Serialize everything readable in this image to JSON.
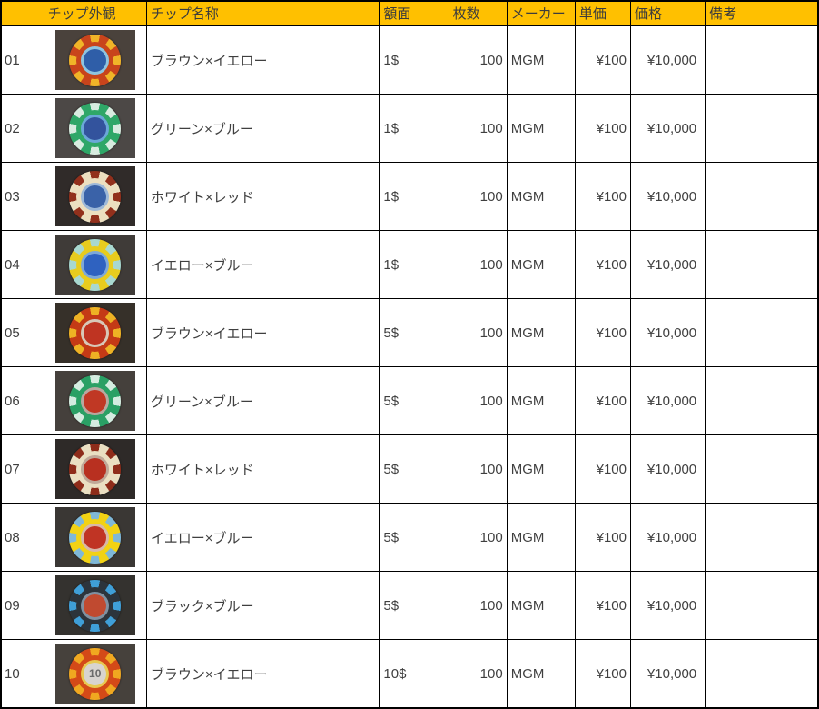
{
  "header": {
    "cells": [
      "",
      "チップ外観",
      "チップ名称",
      "額面",
      "枚数",
      "メーカー",
      "単価",
      "価格",
      "備考"
    ]
  },
  "rows": [
    {
      "no": "01",
      "name": "ブラウン×イエロー",
      "face_value": "1$",
      "quantity": "100",
      "maker": "MGM",
      "unit_price": "¥100",
      "price": "¥10,000",
      "note": "",
      "chip": {
        "ring": "#c8441c",
        "spot": "#f0b428",
        "center": "#2f5ea8",
        "cring": "#8ec4e0",
        "label": "",
        "photo_bg": "#4a423c"
      }
    },
    {
      "no": "02",
      "name": "グリーン×ブルー",
      "face_value": "1$",
      "quantity": "100",
      "maker": "MGM",
      "unit_price": "¥100",
      "price": "¥10,000",
      "note": "",
      "chip": {
        "ring": "#2fa768",
        "spot": "#d8ece0",
        "center": "#33539d",
        "cring": "#6aa7d8",
        "label": "",
        "photo_bg": "#4c4846"
      }
    },
    {
      "no": "03",
      "name": "ホワイト×レッド",
      "face_value": "1$",
      "quantity": "100",
      "maker": "MGM",
      "unit_price": "¥100",
      "price": "¥10,000",
      "note": "",
      "chip": {
        "ring": "#ecdfc0",
        "spot": "#92301c",
        "center": "#3a62a8",
        "cring": "#9db8d8",
        "label": "",
        "photo_bg": "#302b29"
      }
    },
    {
      "no": "04",
      "name": "イエロー×ブルー",
      "face_value": "1$",
      "quantity": "100",
      "maker": "MGM",
      "unit_price": "¥100",
      "price": "¥10,000",
      "note": "",
      "chip": {
        "ring": "#e8cc1e",
        "spot": "#a8d8d0",
        "center": "#2f62c0",
        "cring": "#7da8d8",
        "label": "",
        "photo_bg": "#3f3b38"
      }
    },
    {
      "no": "05",
      "name": "ブラウン×イエロー",
      "face_value": "5$",
      "quantity": "100",
      "maker": "MGM",
      "unit_price": "¥100",
      "price": "¥10,000",
      "note": "",
      "chip": {
        "ring": "#c43a16",
        "spot": "#eeb224",
        "center": "#bf3422",
        "cring": "#d8c8b8",
        "label": "",
        "photo_bg": "#363029"
      }
    },
    {
      "no": "06",
      "name": "グリーン×ブルー",
      "face_value": "5$",
      "quantity": "100",
      "maker": "MGM",
      "unit_price": "¥100",
      "price": "¥10,000",
      "note": "",
      "chip": {
        "ring": "#2aa065",
        "spot": "#d4ece0",
        "center": "#c03824",
        "cring": "#b8a8a0",
        "label": "",
        "photo_bg": "#45403c"
      }
    },
    {
      "no": "07",
      "name": "ホワイト×レッド",
      "face_value": "5$",
      "quantity": "100",
      "maker": "MGM",
      "unit_price": "¥100",
      "price": "¥10,000",
      "note": "",
      "chip": {
        "ring": "#eadfc2",
        "spot": "#8e2c1a",
        "center": "#b83020",
        "cring": "#c0a898",
        "label": "",
        "photo_bg": "#2e2a28"
      }
    },
    {
      "no": "08",
      "name": "イエロー×ブルー",
      "face_value": "5$",
      "quantity": "100",
      "maker": "MGM",
      "unit_price": "¥100",
      "price": "¥10,000",
      "note": "",
      "chip": {
        "ring": "#f2d214",
        "spot": "#7fb8d8",
        "center": "#c03424",
        "cring": "#d8b8a8",
        "label": "",
        "photo_bg": "#3a3734"
      }
    },
    {
      "no": "09",
      "name": "ブラック×ブルー",
      "face_value": "5$",
      "quantity": "100",
      "maker": "MGM",
      "unit_price": "¥100",
      "price": "¥10,000",
      "note": "",
      "chip": {
        "ring": "#2c343c",
        "spot": "#3f9fd8",
        "center": "#c04a30",
        "cring": "#8090a0",
        "label": "",
        "photo_bg": "#34322f"
      }
    },
    {
      "no": "10",
      "name": "ブラウン×イエロー",
      "face_value": "10$",
      "quantity": "100",
      "maker": "MGM",
      "unit_price": "¥100",
      "price": "¥10,000",
      "note": "",
      "chip": {
        "ring": "#d44a18",
        "spot": "#f0a820",
        "center": "#d8d4d0",
        "cring": "#e8c850",
        "label": "10",
        "photo_bg": "#46413c"
      }
    }
  ],
  "colors": {
    "header_bg": "#FFC000",
    "header_text": "#3c3c3c",
    "body_text": "#3f3f3f",
    "border": "#000000"
  }
}
